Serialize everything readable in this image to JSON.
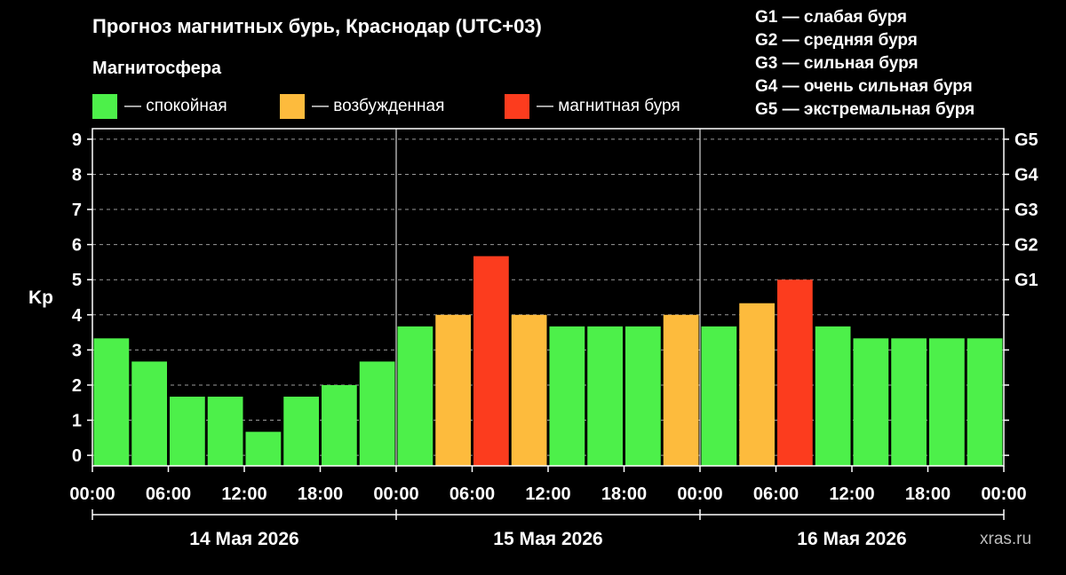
{
  "title": "Прогноз магнитных бурь, Краснодар (UTC+03)",
  "legend": {
    "title": "Магнитосфера",
    "items": [
      {
        "label": "— спокойная",
        "color": "#4df04a"
      },
      {
        "label": "— возбужденная",
        "color": "#fdbb3d"
      },
      {
        "label": "— магнитная буря",
        "color": "#fc3c1e"
      }
    ]
  },
  "storm_levels": [
    "G1 — слабая буря",
    "G2 — средняя буря",
    "G3 — сильная буря",
    "G4 — очень сильная буря",
    "G5 — экстремальная буря"
  ],
  "watermark": "xras.ru",
  "chart_data": {
    "type": "bar",
    "ylabel": "Kp",
    "ylim": [
      -0.3,
      9.3
    ],
    "yticks": [
      0,
      1,
      2,
      3,
      4,
      5,
      6,
      7,
      8,
      9
    ],
    "right_ticks": [
      {
        "value": 5,
        "label": "G1"
      },
      {
        "value": 6,
        "label": "G2"
      },
      {
        "value": 7,
        "label": "G3"
      },
      {
        "value": 8,
        "label": "G4"
      },
      {
        "value": 9,
        "label": "G5"
      }
    ],
    "grid": "horizontal dashed",
    "x_tick_labels": [
      "00:00",
      "06:00",
      "12:00",
      "18:00",
      "00:00",
      "06:00",
      "12:00",
      "18:00",
      "00:00",
      "06:00",
      "12:00",
      "18:00",
      "00:00"
    ],
    "days": [
      "14 Мая 2026",
      "15 Мая 2026",
      "16 Мая 2026"
    ],
    "values": [
      3.33,
      2.67,
      1.67,
      1.67,
      0.67,
      1.67,
      2.0,
      2.67,
      3.67,
      4.0,
      5.67,
      4.0,
      3.67,
      3.67,
      3.67,
      4.0,
      3.67,
      4.33,
      5.0,
      3.67,
      3.33,
      3.33,
      3.33,
      3.33
    ],
    "levels": [
      "quiet",
      "quiet",
      "quiet",
      "quiet",
      "quiet",
      "quiet",
      "quiet",
      "quiet",
      "quiet",
      "active",
      "storm",
      "active",
      "quiet",
      "quiet",
      "quiet",
      "active",
      "quiet",
      "active",
      "storm",
      "quiet",
      "quiet",
      "quiet",
      "quiet",
      "quiet"
    ],
    "level_colors": {
      "quiet": "#4df04a",
      "active": "#fdbb3d",
      "storm": "#fc3c1e"
    }
  }
}
